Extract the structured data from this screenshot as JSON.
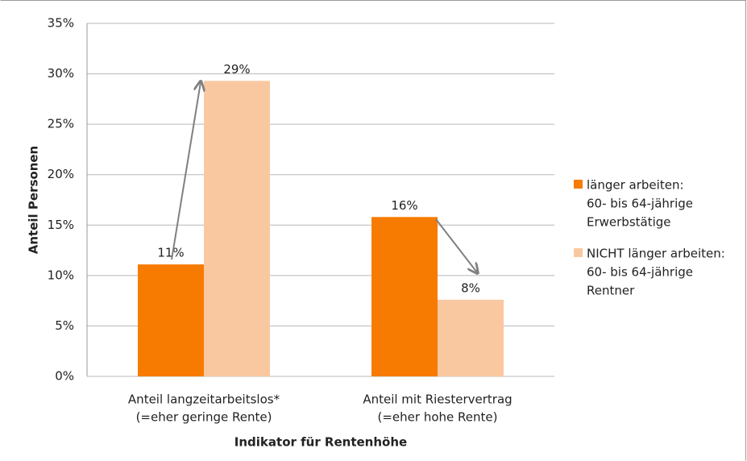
{
  "chart_data": {
    "type": "bar",
    "x_label": "Indikator für Rentenhöhe",
    "y_label": "Anteil Personen",
    "categories": [
      [
        "Anteil langzeitarbeitslos*",
        "(=eher geringe Rente)"
      ],
      [
        "Anteil mit Riestervertrag",
        "(=eher hohe Rente)"
      ]
    ],
    "series": [
      {
        "name": [
          "länger arbeiten:",
          "60- bis 64-jährige",
          "Erwerbstätige"
        ],
        "color": "#f77b00",
        "values": [
          11.1,
          15.8
        ],
        "value_labels": [
          "11%",
          "16%"
        ]
      },
      {
        "name": [
          "NICHT länger arbeiten:",
          "60- bis 64-jährige",
          "Rentner"
        ],
        "color": "#fac8a0",
        "values": [
          29.3,
          7.6
        ],
        "value_labels": [
          "29%",
          "8%"
        ]
      }
    ],
    "ylim": [
      0,
      35
    ],
    "yticks": [
      {
        "value": 0,
        "label": "0%"
      },
      {
        "value": 5,
        "label": "5%"
      },
      {
        "value": 10,
        "label": "10%"
      },
      {
        "value": 15,
        "label": "15%"
      },
      {
        "value": 20,
        "label": "20%"
      },
      {
        "value": 25,
        "label": "25%"
      },
      {
        "value": 30,
        "label": "30%"
      },
      {
        "value": 35,
        "label": "35%"
      }
    ],
    "grid": true,
    "legend": "right"
  }
}
